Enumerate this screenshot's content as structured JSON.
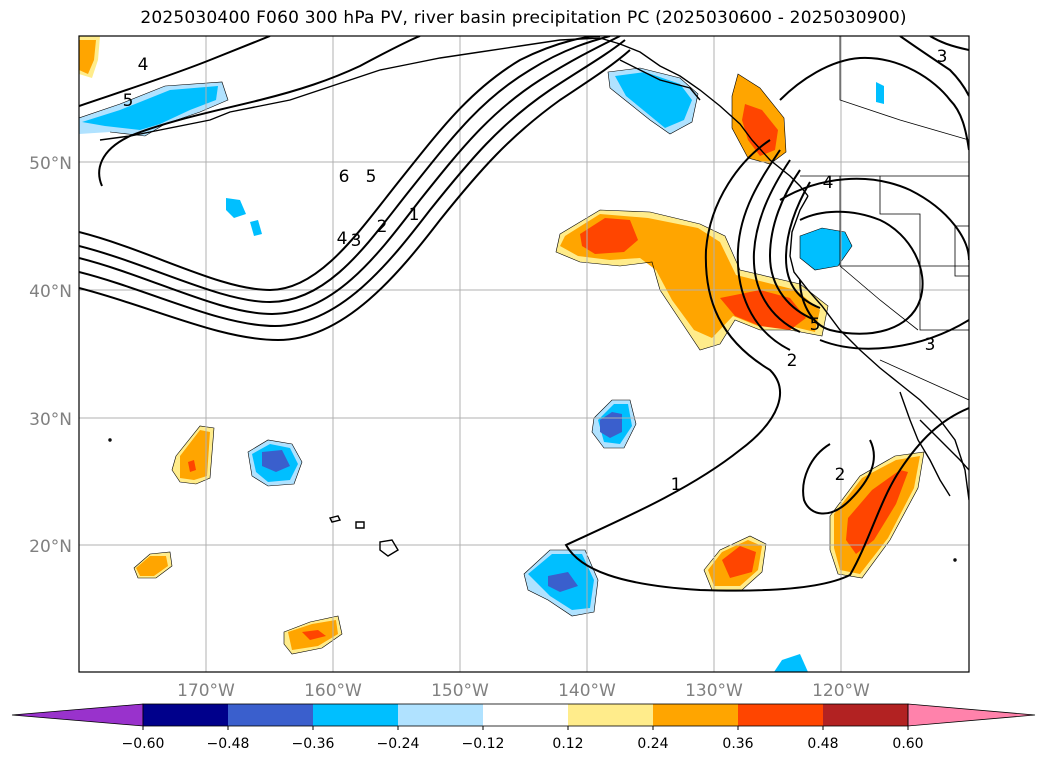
{
  "title": "2025030400 F060 300 hPa PV, river basin precipitation PC (2025030600 - 2025030900)",
  "lat_labels": [
    "50°N",
    "40°N",
    "30°N",
    "20°N"
  ],
  "lon_labels": [
    "170°W",
    "160°W",
    "150°W",
    "140°W",
    "130°W",
    "120°W"
  ],
  "pv_contour_labels": [
    "4",
    "5",
    "6",
    "5",
    "4",
    "3",
    "2",
    "1",
    "4",
    "3",
    "5",
    "2",
    "1",
    "2",
    "3"
  ],
  "colorbar": {
    "ticks": [
      "−0.60",
      "−0.48",
      "−0.36",
      "−0.24",
      "−0.12",
      "0.12",
      "0.24",
      "0.36",
      "0.48",
      "0.60"
    ],
    "colors": [
      "#9932cc",
      "#00008b",
      "#3a5fcd",
      "#00bfff",
      "#b0e2ff",
      "#ffffff",
      "#ffec8b",
      "#ffa500",
      "#ff4500",
      "#b22222",
      "#ff82ab"
    ]
  },
  "colors": {
    "coastline": "#000000",
    "pv_contour": "#000000",
    "gridline": "#b0b0b0"
  }
}
